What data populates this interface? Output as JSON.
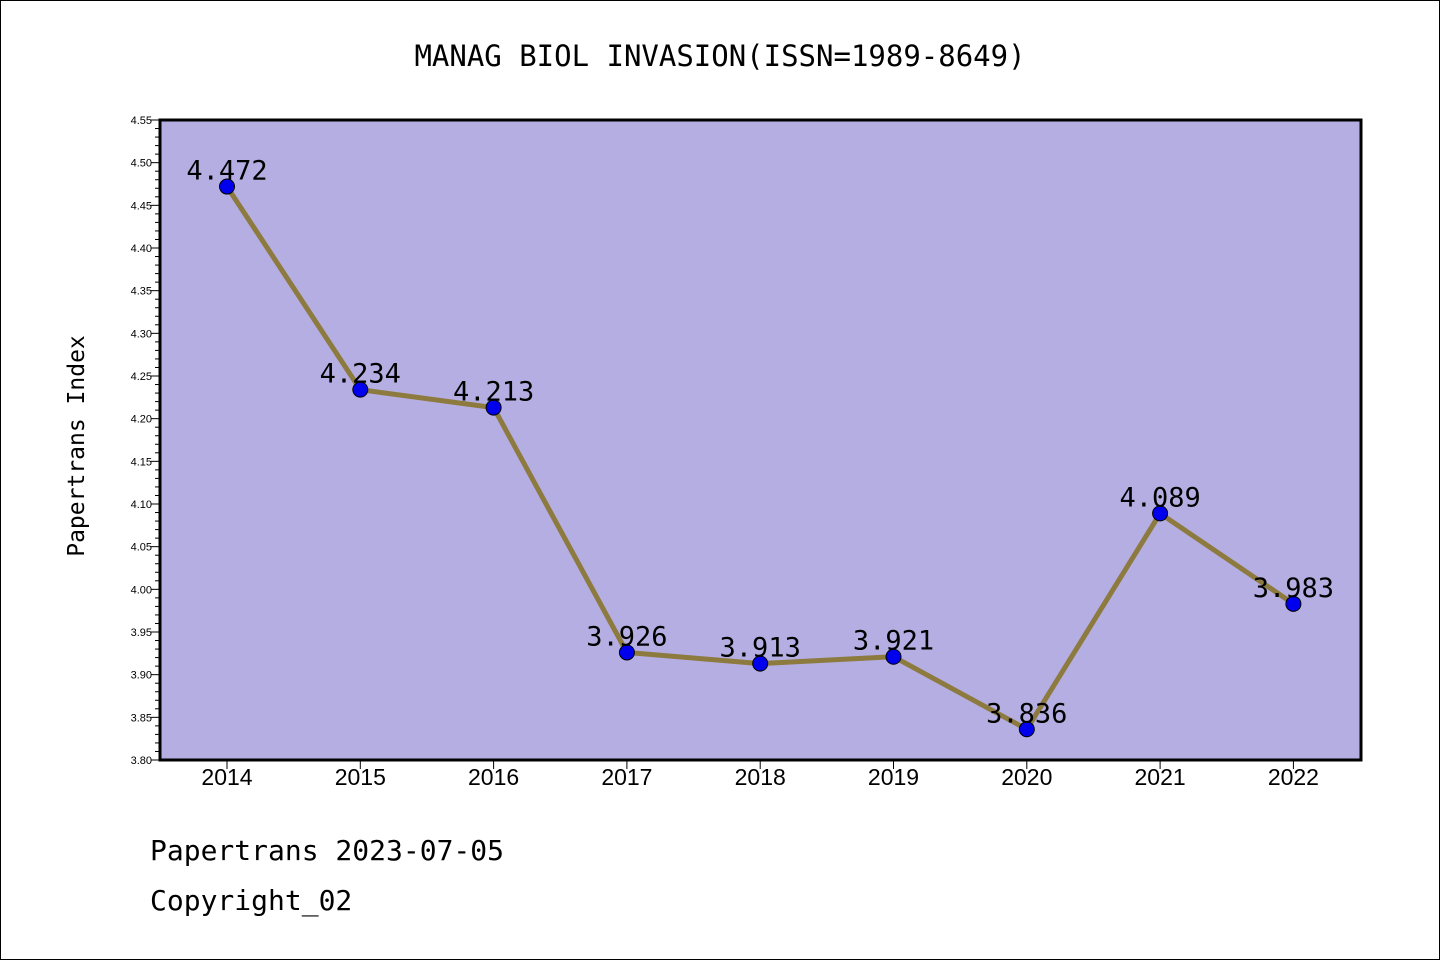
{
  "colors": {
    "plot_background": "#b5aee2",
    "line": "#8c7a3e",
    "marker": "#0000ee",
    "axis": "#000000"
  },
  "chart_data": {
    "type": "line",
    "title": "MANAG BIOL INVASION(ISSN=1989-8649)",
    "xlabel": "",
    "ylabel": "Papertrans Index",
    "categories": [
      "2014",
      "2015",
      "2016",
      "2017",
      "2018",
      "2019",
      "2020",
      "2021",
      "2022"
    ],
    "series": [
      {
        "values": [
          4.472,
          4.234,
          4.213,
          3.926,
          3.913,
          3.921,
          3.836,
          4.089,
          3.983
        ],
        "data_labels": [
          "4.472",
          "4.234",
          "4.213",
          "3.926",
          "3.913",
          "3.921",
          "3.836",
          "4.089",
          "3.983"
        ]
      }
    ],
    "ylim": [
      3.8,
      4.55
    ],
    "yticks": [
      "3.80",
      "3.85",
      "3.90",
      "3.95",
      "4.00",
      "4.05",
      "4.10",
      "4.15",
      "4.20",
      "4.25",
      "4.30",
      "4.35",
      "4.40",
      "4.45",
      "4.50",
      "4.55"
    ],
    "grid": false,
    "legend": "none"
  },
  "footer": {
    "line1": "Papertrans 2023-07-05",
    "line2": "Copyright_02"
  }
}
